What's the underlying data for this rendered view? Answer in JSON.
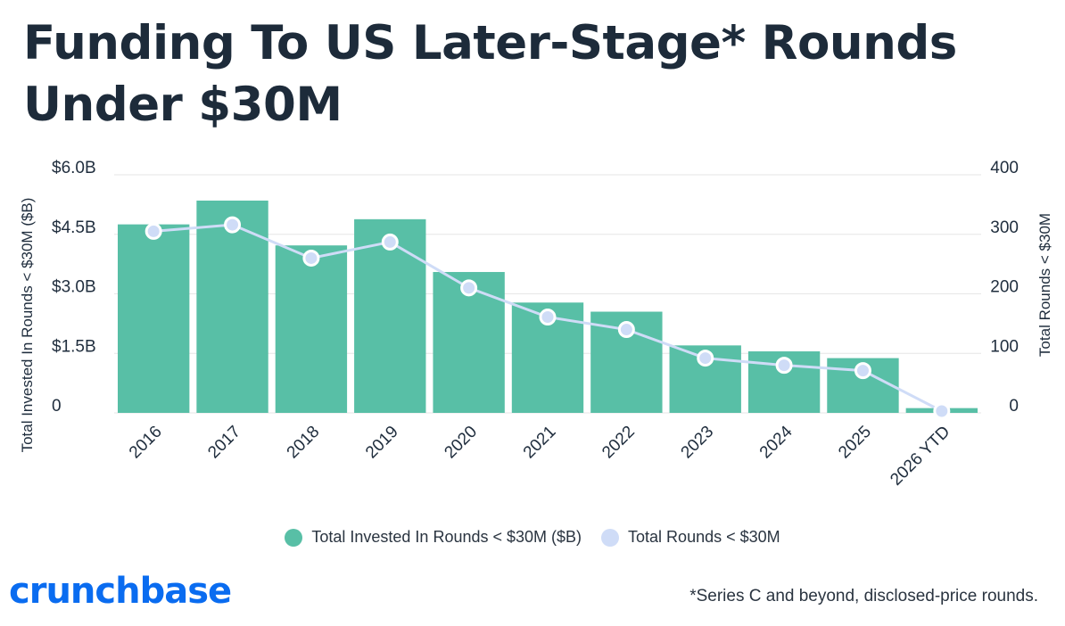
{
  "title": "Funding To US Later-Stage* Rounds Under $30M",
  "footnote": "*Series C and beyond, disclosed-price rounds.",
  "logo": "crunchbase",
  "colors": {
    "bar": "#58bfa6",
    "line": "#cfdcf7",
    "marker": "#cfdcf7",
    "grid": "#e6e6e6"
  },
  "chart_data": {
    "type": "bar",
    "categories": [
      "2016",
      "2017",
      "2018",
      "2019",
      "2020",
      "2021",
      "2022",
      "2023",
      "2024",
      "2025",
      "2026 YTD"
    ],
    "series": [
      {
        "name": "Total Invested In Rounds < $30M ($B)",
        "type": "bar",
        "axis": "left",
        "values": [
          4.75,
          5.35,
          4.22,
          4.88,
          3.55,
          2.78,
          2.55,
          1.7,
          1.55,
          1.38,
          0.12
        ]
      },
      {
        "name": "Total Rounds < $30M",
        "type": "line",
        "axis": "right",
        "values": [
          305,
          316,
          260,
          287,
          210,
          161,
          140,
          92,
          80,
          71,
          3
        ]
      }
    ],
    "y_left": {
      "label": "Total Invested In Rounds < $30M ($B)",
      "ylim": [
        0,
        6.0
      ],
      "ticks": [
        0,
        1.5,
        3.0,
        4.5,
        6.0
      ],
      "tick_labels": [
        "0",
        "$1.5B",
        "$3.0B",
        "$4.5B",
        "$6.0B"
      ]
    },
    "y_right": {
      "label": "Total Rounds < $30M",
      "ylim": [
        0,
        400
      ],
      "ticks": [
        0,
        100,
        200,
        300,
        400
      ],
      "tick_labels": [
        "0",
        "100",
        "200",
        "300",
        "400"
      ]
    },
    "grid": true,
    "legend_position": "bottom"
  }
}
